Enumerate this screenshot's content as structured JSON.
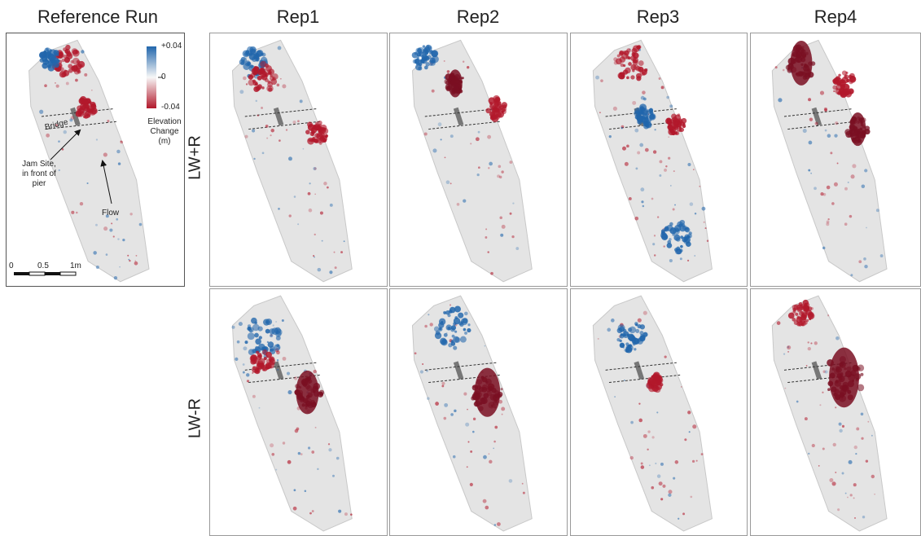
{
  "header": {
    "columns": [
      "Reference Run",
      "Rep1",
      "Rep2",
      "Rep3",
      "Rep4"
    ]
  },
  "rows": [
    "LW+R",
    "LW-R"
  ],
  "legend": {
    "ticks": [
      "+0.04",
      "0",
      "-0.04"
    ],
    "title": "Elevation Change (m)"
  },
  "annotations": {
    "bridge": "Bridge",
    "jam_site": "Jam Site, in front of pier",
    "flow": "Flow"
  },
  "scale_bar": [
    "0",
    "0.5",
    "1m"
  ]
}
